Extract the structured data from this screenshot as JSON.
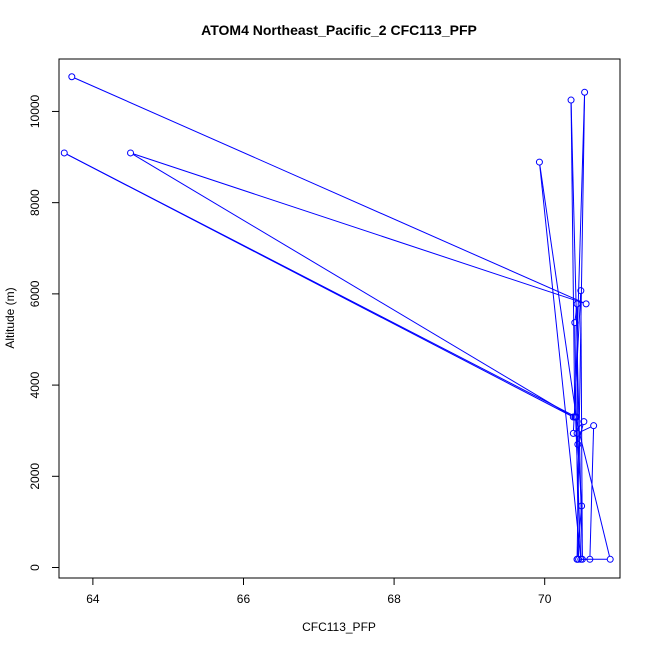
{
  "chart_data": {
    "type": "scatter",
    "title": "ATOM4 Northeast_Pacific_2 CFC113_PFP",
    "xlabel": "CFC113_PFP",
    "ylabel": "Altitude (m)",
    "xlim": [
      63.55,
      71.0
    ],
    "ylim": [
      -230,
      11150
    ],
    "xticks": [
      64,
      66,
      68,
      70
    ],
    "yticks": [
      0,
      2000,
      4000,
      6000,
      8000,
      10000
    ],
    "grid": false,
    "line_color": "#0000ff",
    "series": [
      {
        "x": [
          70.43,
          70.53,
          70.4,
          70.35,
          70.5,
          70.48,
          70.38,
          70.52,
          70.44,
          70.43,
          70.4,
          70.45,
          70.6,
          70.65,
          70.43,
          70.49,
          70.43,
          70.87,
          70.41,
          70.48,
          69.93,
          70.42,
          63.62,
          70.38,
          64.5,
          70.55,
          63.72
        ],
        "y": [
          180,
          10420,
          3300,
          10250,
          180,
          6070,
          2940,
          3200,
          2700,
          5780,
          5370,
          180,
          180,
          3110,
          2940,
          1350,
          180,
          180,
          3300,
          180,
          8890,
          3300,
          9090,
          3300,
          9090,
          5780,
          10760
        ]
      }
    ]
  }
}
